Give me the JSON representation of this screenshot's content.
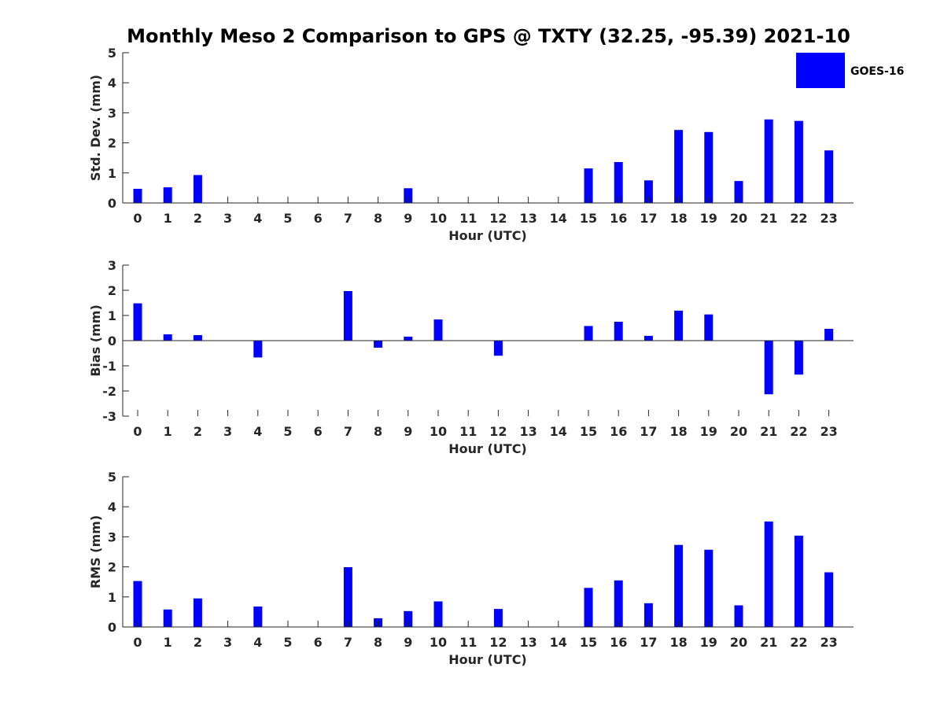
{
  "colors": {
    "bar": "#0000ff",
    "axis": "#262626",
    "background": "#ffffff"
  },
  "chart_data": {
    "title": "Monthly Meso 2 Comparison to GPS @ TXTY (32.25, -95.39) 2021-10",
    "legend": {
      "label": "GOES-16",
      "placement": "top-right"
    },
    "panels": [
      {
        "type": "bar",
        "ylabel": "Std. Dev. (mm)",
        "xlabel": "Hour (UTC)",
        "ylim": [
          0,
          5
        ],
        "yticks": [
          "0",
          "1",
          "2",
          "3",
          "4",
          "5"
        ],
        "categories": [
          "0",
          "1",
          "2",
          "3",
          "4",
          "5",
          "6",
          "7",
          "8",
          "9",
          "10",
          "11",
          "12",
          "13",
          "14",
          "15",
          "16",
          "17",
          "18",
          "19",
          "20",
          "21",
          "22",
          "23"
        ],
        "values": [
          0.47,
          0.52,
          0.93,
          0,
          0,
          0,
          0,
          0,
          0,
          0.49,
          0,
          0,
          0,
          0,
          0,
          1.15,
          1.36,
          0.75,
          2.43,
          2.36,
          0.73,
          2.78,
          2.73,
          1.75
        ],
        "grid": false
      },
      {
        "type": "bar",
        "ylabel": "Bias (mm)",
        "xlabel": "Hour (UTC)",
        "ylim": [
          -3,
          3
        ],
        "yticks": [
          "-3",
          "-2",
          "-1",
          "0",
          "1",
          "2",
          "3"
        ],
        "categories": [
          "0",
          "1",
          "2",
          "3",
          "4",
          "5",
          "6",
          "7",
          "8",
          "9",
          "10",
          "11",
          "12",
          "13",
          "14",
          "15",
          "16",
          "17",
          "18",
          "19",
          "20",
          "21",
          "22",
          "23"
        ],
        "values": [
          1.48,
          0.25,
          0.22,
          0,
          -0.67,
          0,
          0,
          1.97,
          -0.28,
          0.16,
          0.84,
          0,
          -0.6,
          0,
          0,
          0.58,
          0.75,
          0.19,
          1.19,
          1.04,
          0,
          -2.13,
          -1.35,
          0.47
        ],
        "grid": false
      },
      {
        "type": "bar",
        "ylabel": "RMS (mm)",
        "xlabel": "Hour (UTC)",
        "ylim": [
          0,
          5
        ],
        "yticks": [
          "0",
          "1",
          "2",
          "3",
          "4",
          "5"
        ],
        "categories": [
          "0",
          "1",
          "2",
          "3",
          "4",
          "5",
          "6",
          "7",
          "8",
          "9",
          "10",
          "11",
          "12",
          "13",
          "14",
          "15",
          "16",
          "17",
          "18",
          "19",
          "20",
          "21",
          "22",
          "23"
        ],
        "values": [
          1.53,
          0.58,
          0.95,
          0,
          0.68,
          0,
          0,
          1.99,
          0.29,
          0.53,
          0.85,
          0,
          0.6,
          0,
          0,
          1.3,
          1.55,
          0.79,
          2.73,
          2.57,
          0.72,
          3.51,
          3.04,
          1.82
        ],
        "grid": false
      }
    ]
  }
}
